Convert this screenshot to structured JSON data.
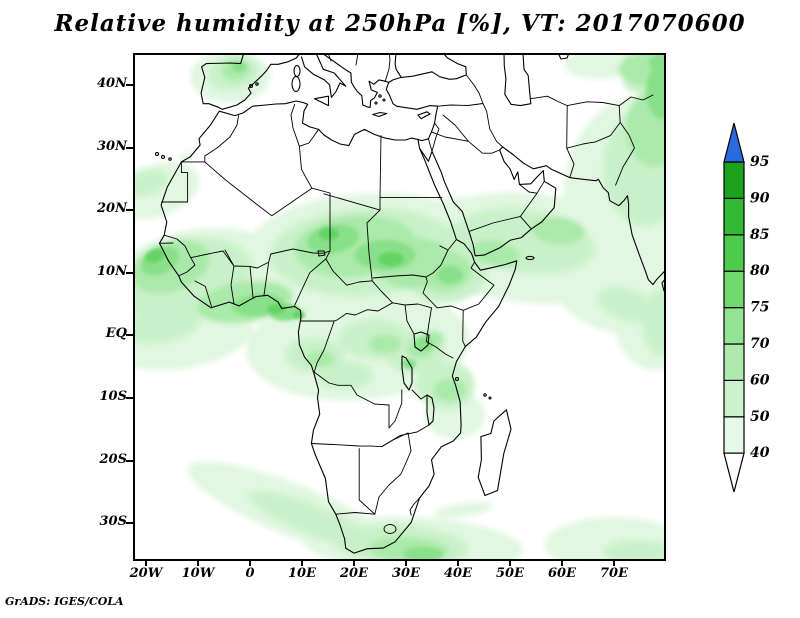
{
  "header": {
    "title": "Relative humidity at 250hPa [%], VT: 2017070600"
  },
  "footer": {
    "credit": "GrADS: IGES/COLA"
  },
  "chart_data": {
    "type": "heatmap",
    "title": "Relative humidity at 250hPa [%], VT: 2017070600",
    "variable": "Relative humidity",
    "pressure_level": "250hPa",
    "units": "%",
    "valid_time": "2017070600",
    "projection": "latlon",
    "lon_range_deg": [
      -22.5,
      80
    ],
    "lat_range_deg": [
      -36,
      45
    ],
    "x_ticks": [
      {
        "label": "20W",
        "lon": -20
      },
      {
        "label": "10W",
        "lon": -10
      },
      {
        "label": "0",
        "lon": 0
      },
      {
        "label": "10E",
        "lon": 10
      },
      {
        "label": "20E",
        "lon": 20
      },
      {
        "label": "30E",
        "lon": 30
      },
      {
        "label": "40E",
        "lon": 40
      },
      {
        "label": "50E",
        "lon": 50
      },
      {
        "label": "60E",
        "lon": 60
      },
      {
        "label": "70E",
        "lon": 70
      }
    ],
    "y_ticks": [
      {
        "label": "40N",
        "lat": 40
      },
      {
        "label": "30N",
        "lat": 30
      },
      {
        "label": "20N",
        "lat": 20
      },
      {
        "label": "10N",
        "lat": 10
      },
      {
        "label": "EQ",
        "lat": 0
      },
      {
        "label": "10S",
        "lat": -10
      },
      {
        "label": "20S",
        "lat": -20
      },
      {
        "label": "30S",
        "lat": -30
      }
    ],
    "colorbar": {
      "levels": [
        40,
        50,
        60,
        70,
        75,
        80,
        85,
        90,
        95
      ],
      "labels": [
        "40",
        "50",
        "60",
        "70",
        "75",
        "80",
        "85",
        "90",
        "95"
      ],
      "segment_colors": [
        "#e6f9e6",
        "#ccf2cc",
        "#aeeaae",
        "#92e492",
        "#70da70",
        "#4ccb4c",
        "#33b933",
        "#1ca21c"
      ],
      "over_color": "#2a6ae0",
      "under_color": "#ffffff",
      "frame_color": "#000000"
    },
    "grid": false,
    "legend_position": "right",
    "high_humidity_regions": [
      "West African / Guinea coast",
      "Sahel and Chad-Sudan belt",
      "Ethiopian highlands and Horn of Africa",
      "Congo basin and Lake Victoria region",
      "Southern Arabian Peninsula and Arabian Sea",
      "India and map east edge",
      "North-east Spain (Iberia)",
      "South African south coast and SW Atlantic band"
    ]
  }
}
